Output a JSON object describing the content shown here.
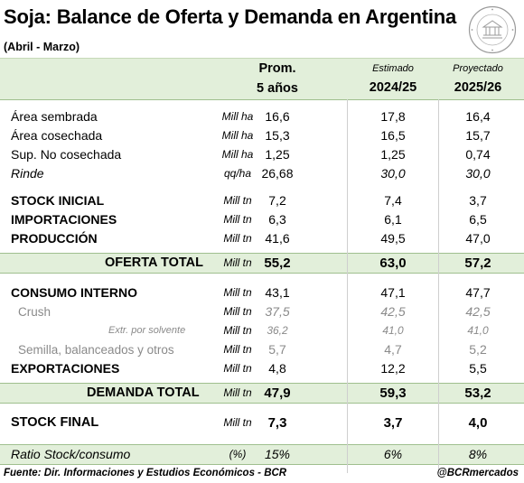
{
  "title": "Soja: Balance de Oferta y Demanda en Argentina",
  "subtitle": "(Abril - Marzo)",
  "seal_text": "BOLSA DE COMERCIO DE ROSARIO",
  "columns": [
    {
      "top": "",
      "main": "Prom.",
      "sub": "5 años"
    },
    {
      "top": "Estimado",
      "main": "2024/25"
    },
    {
      "top": "Proyectado",
      "main": "2025/26"
    }
  ],
  "rows": {
    "area_sembrada": {
      "label": "Área sembrada",
      "unit": "Mill ha",
      "v1": "16,6",
      "v2": "17,8",
      "v3": "16,4"
    },
    "area_cosechada": {
      "label": "Área cosechada",
      "unit": "Mill ha",
      "v1": "15,3",
      "v2": "16,5",
      "v3": "15,7"
    },
    "sup_no_cosechada": {
      "label": "Sup. No cosechada",
      "unit": "Mill ha",
      "v1": "1,25",
      "v2": "1,25",
      "v3": "0,74"
    },
    "rinde": {
      "label": "Rinde",
      "unit": "qq/ha",
      "v1": "26,68",
      "v2": "30,0",
      "v3": "30,0"
    },
    "stock_inicial": {
      "label": "STOCK INICIAL",
      "unit": "Mill tn",
      "v1": "7,2",
      "v2": "7,4",
      "v3": "3,7"
    },
    "importaciones": {
      "label": "IMPORTACIONES",
      "unit": "Mill tn",
      "v1": "6,3",
      "v2": "6,1",
      "v3": "6,5"
    },
    "produccion": {
      "label": "PRODUCCIÓN",
      "unit": "Mill tn",
      "v1": "41,6",
      "v2": "49,5",
      "v3": "47,0"
    },
    "oferta_total": {
      "label": "OFERTA TOTAL",
      "unit": "Mill tn",
      "v1": "55,2",
      "v2": "63,0",
      "v3": "57,2"
    },
    "consumo_interno": {
      "label": "CONSUMO INTERNO",
      "unit": "Mill tn",
      "v1": "43,1",
      "v2": "47,1",
      "v3": "47,7"
    },
    "crush": {
      "label": "Crush",
      "unit": "Mill tn",
      "v1": "37,5",
      "v2": "42,5",
      "v3": "42,5"
    },
    "extr_solvente": {
      "label": "Extr. por solvente",
      "unit": "Mill tn",
      "v1": "36,2",
      "v2": "41,0",
      "v3": "41,0"
    },
    "semilla": {
      "label": "Semilla, balanceados y otros",
      "unit": "Mill tn",
      "v1": "5,7",
      "v2": "4,7",
      "v3": "5,2"
    },
    "exportaciones": {
      "label": "EXPORTACIONES",
      "unit": "Mill tn",
      "v1": "4,8",
      "v2": "12,2",
      "v3": "5,5"
    },
    "demanda_total": {
      "label": "DEMANDA TOTAL",
      "unit": "Mill tn",
      "v1": "47,9",
      "v2": "59,3",
      "v3": "53,2"
    },
    "stock_final": {
      "label": "STOCK FINAL",
      "unit": "Mill tn",
      "v1": "7,3",
      "v2": "3,7",
      "v3": "4,0"
    },
    "ratio": {
      "label": "Ratio Stock/consumo",
      "unit": "(%)",
      "v1": "15%",
      "v2": "6%",
      "v3": "8%"
    }
  },
  "footer": {
    "source": "Fuente: Dir. Informaciones y Estudios Económicos - BCR",
    "handle": "@BCRmercados"
  }
}
